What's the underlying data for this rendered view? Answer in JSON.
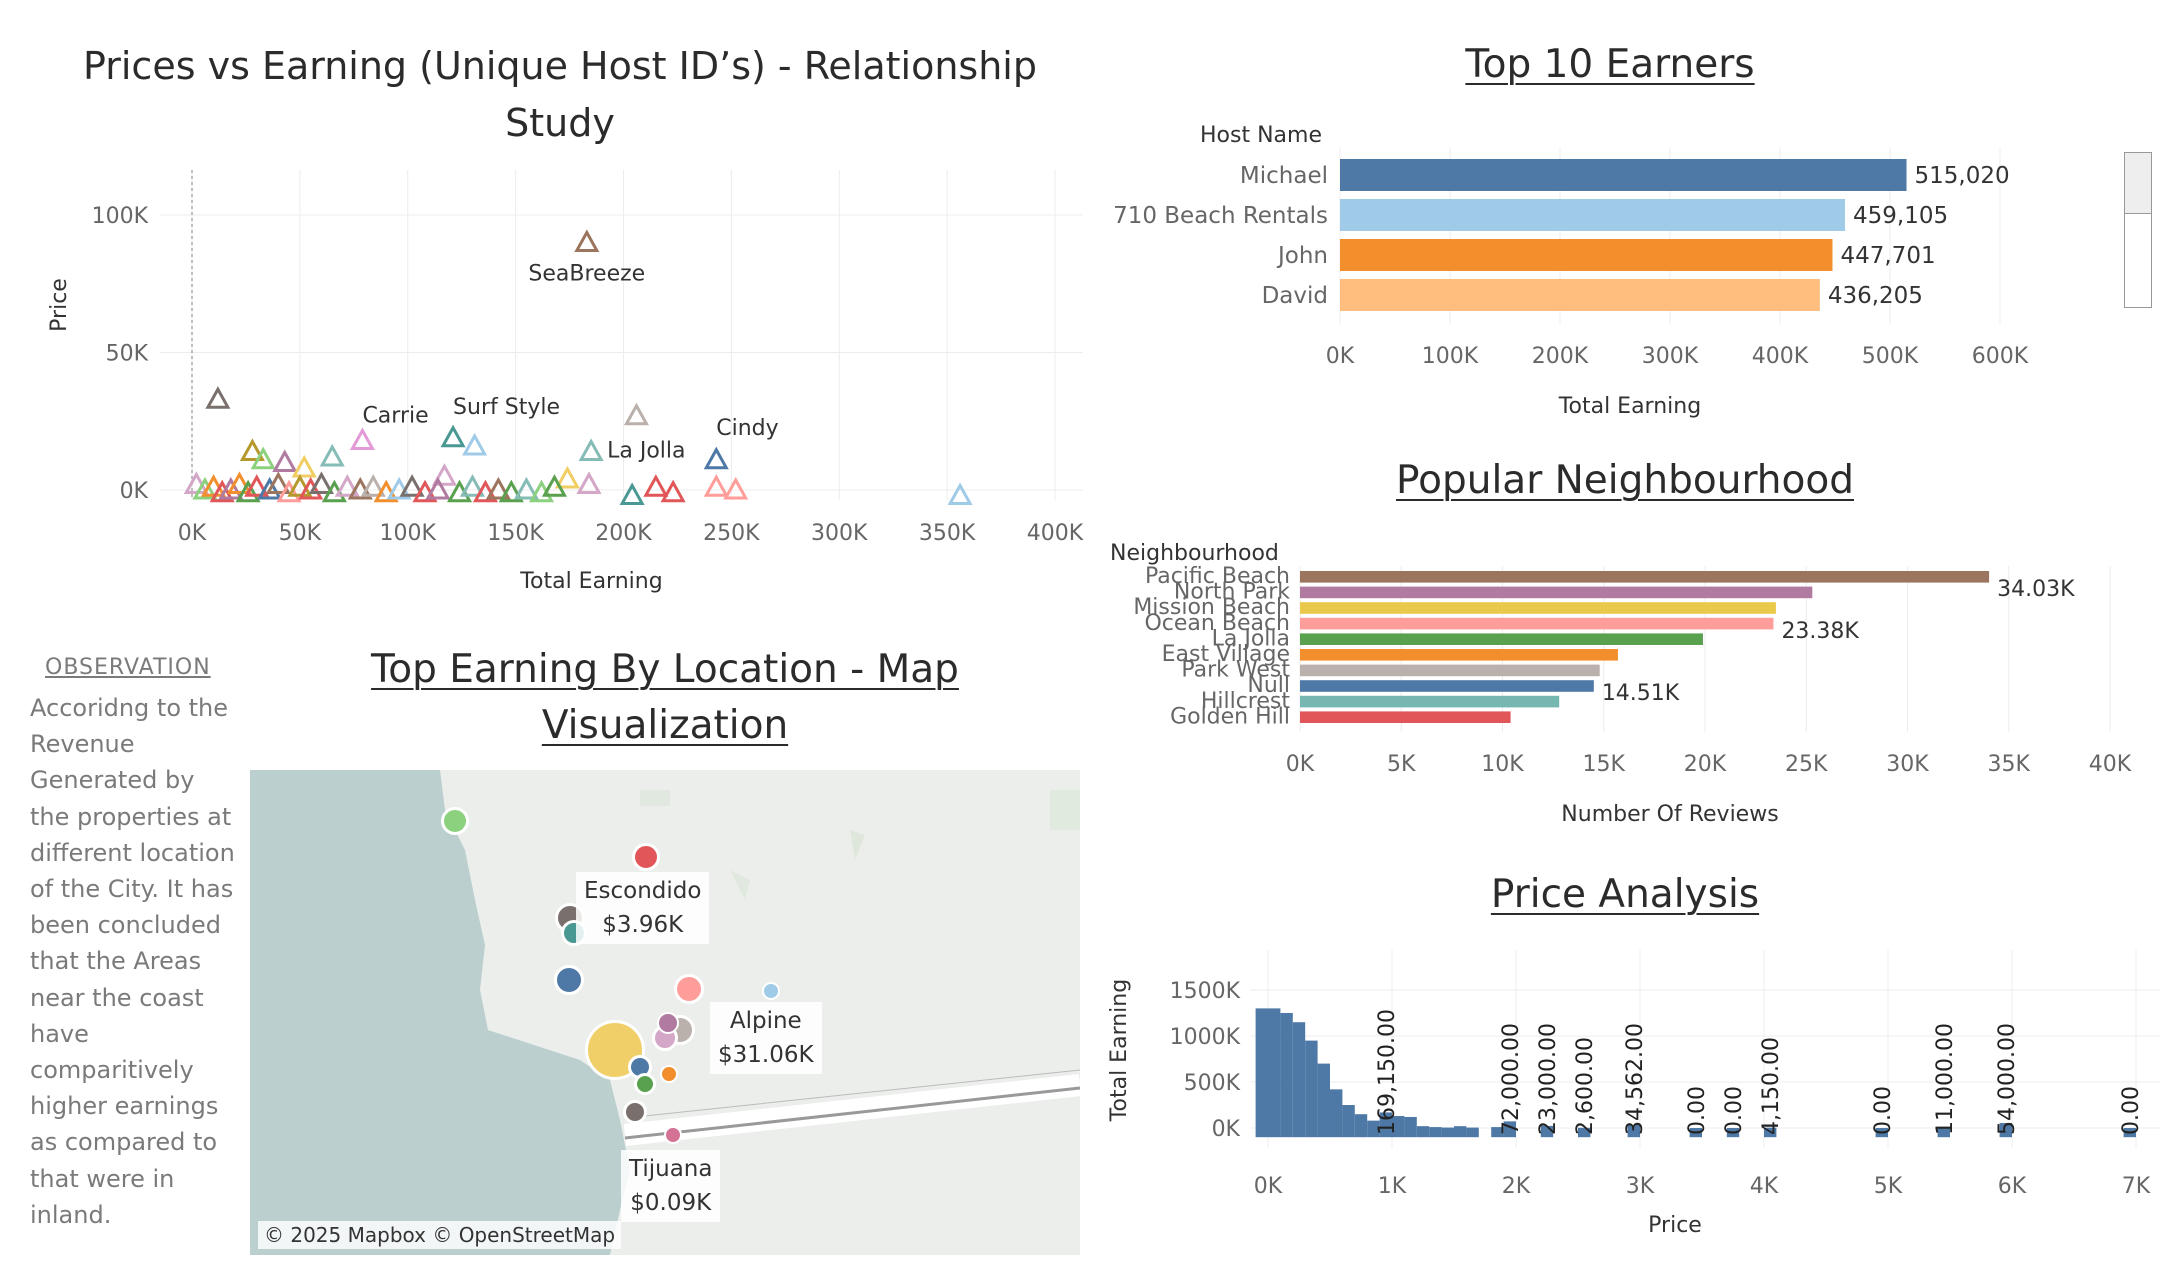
{
  "scatter": {
    "title": "Prices vs Earning (Unique Host ID’s) - Relationship Study",
    "xlabel": "Total Earning",
    "ylabel": "Price"
  },
  "top10": {
    "title": "Top 10 Earners",
    "header": "Host Name",
    "xlabel": "Total Earning"
  },
  "neigh": {
    "title": "Popular Neighbourhood",
    "header": "Neighbourhood",
    "xlabel": "Number Of Reviews"
  },
  "price": {
    "title": "Price Analysis",
    "xlabel": "Price",
    "ylabel": "Total Earning"
  },
  "map": {
    "title": "Top Earning By Location - Map Visualization",
    "attribution": "© 2025 Mapbox © OpenStreetMap",
    "labels": [
      {
        "name": "Escondido",
        "value": "$3.96K"
      },
      {
        "name": "Alpine",
        "value": "$31.06K"
      },
      {
        "name": "Tijuana",
        "value": "$0.09K"
      }
    ]
  },
  "observation": {
    "heading": "OBSERVATION",
    "text": "Accoridng to the Revenue Generated by the properties at different location of the City. It has been concluded that the Areas near the coast have comparitively higher earnings as compared to that were in inland."
  },
  "chart_data": [
    {
      "type": "scatter",
      "title": "Prices vs Earning (Unique Host ID’s) - Relationship Study",
      "xlabel": "Total Earning",
      "ylabel": "Price",
      "xlim": [
        0,
        400000
      ],
      "ylim": [
        0,
        120000
      ],
      "x_ticks": [
        "0K",
        "50K",
        "100K",
        "150K",
        "200K",
        "250K",
        "300K",
        "350K",
        "400K"
      ],
      "y_ticks": [
        "0K",
        "50K",
        "100K"
      ],
      "marker": "triangle",
      "labeled_points": [
        {
          "label": "SeaBreeze",
          "x": 183000,
          "y": 90000,
          "color": "#9c755f"
        },
        {
          "label": "Carrie",
          "x": 79000,
          "y": 18000,
          "color": "#e39ad6"
        },
        {
          "label": "Surf Style",
          "x": 121000,
          "y": 19000,
          "color": "#499894"
        },
        {
          "label": "La Jolla",
          "x": 185000,
          "y": 14000,
          "color": "#86bcb6"
        },
        {
          "label": "Cindy",
          "x": 243000,
          "y": 11000,
          "color": "#4e79a7"
        }
      ],
      "points": [
        {
          "x": 12000,
          "y": 33000,
          "color": "#79706e"
        },
        {
          "x": 131000,
          "y": 16000,
          "color": "#a0cbe8"
        },
        {
          "x": 206000,
          "y": 27000,
          "color": "#bab0ac"
        },
        {
          "x": 65000,
          "y": 12000,
          "color": "#86bcb6"
        },
        {
          "x": 28000,
          "y": 14000,
          "color": "#b6992d"
        },
        {
          "x": 33000,
          "y": 11000,
          "color": "#8cd17d"
        },
        {
          "x": 43000,
          "y": 10000,
          "color": "#b07aa1"
        },
        {
          "x": 52000,
          "y": 8000,
          "color": "#f1ce63"
        },
        {
          "x": 117000,
          "y": 5000,
          "color": "#d4a6c8"
        },
        {
          "x": 174000,
          "y": 4000,
          "color": "#f1ce63"
        },
        {
          "x": 184000,
          "y": 2000,
          "color": "#d4a6c8"
        },
        {
          "x": 215000,
          "y": 1000,
          "color": "#e15759"
        },
        {
          "x": 243000,
          "y": 1000,
          "color": "#ff9d9a"
        },
        {
          "x": 252000,
          "y": 0,
          "color": "#ff9d9a"
        },
        {
          "x": 356000,
          "y": -2000,
          "color": "#a0cbe8"
        },
        {
          "x": 204000,
          "y": -2000,
          "color": "#499894"
        },
        {
          "x": 223000,
          "y": -1000,
          "color": "#e15759"
        },
        {
          "x": 2000,
          "y": 2000,
          "color": "#d4a6c8"
        },
        {
          "x": 6000,
          "y": 0,
          "color": "#8cd17d"
        },
        {
          "x": 10000,
          "y": 1000,
          "color": "#f28e2b"
        },
        {
          "x": 14000,
          "y": -1000,
          "color": "#e15759"
        },
        {
          "x": 18000,
          "y": 0,
          "color": "#b07aa1"
        },
        {
          "x": 22000,
          "y": 2000,
          "color": "#f28e2b"
        },
        {
          "x": 26000,
          "y": -1000,
          "color": "#59a14f"
        },
        {
          "x": 30000,
          "y": 1000,
          "color": "#e15759"
        },
        {
          "x": 36000,
          "y": 0,
          "color": "#4e79a7"
        },
        {
          "x": 40000,
          "y": 2000,
          "color": "#9c755f"
        },
        {
          "x": 45000,
          "y": -1000,
          "color": "#ff9d9a"
        },
        {
          "x": 50000,
          "y": 1000,
          "color": "#b6992d"
        },
        {
          "x": 55000,
          "y": 0,
          "color": "#e15759"
        },
        {
          "x": 60000,
          "y": 2000,
          "color": "#79706e"
        },
        {
          "x": 66000,
          "y": -1000,
          "color": "#59a14f"
        },
        {
          "x": 72000,
          "y": 1000,
          "color": "#d4a6c8"
        },
        {
          "x": 78000,
          "y": 0,
          "color": "#9c755f"
        },
        {
          "x": 84000,
          "y": 1000,
          "color": "#bab0ac"
        },
        {
          "x": 90000,
          "y": -1000,
          "color": "#f28e2b"
        },
        {
          "x": 96000,
          "y": 0,
          "color": "#a0cbe8"
        },
        {
          "x": 102000,
          "y": 1000,
          "color": "#79706e"
        },
        {
          "x": 108000,
          "y": -1000,
          "color": "#e15759"
        },
        {
          "x": 114000,
          "y": 0,
          "color": "#b07aa1"
        },
        {
          "x": 124000,
          "y": -1000,
          "color": "#59a14f"
        },
        {
          "x": 130000,
          "y": 1000,
          "color": "#86bcb6"
        },
        {
          "x": 136000,
          "y": -1000,
          "color": "#e15759"
        },
        {
          "x": 142000,
          "y": 0,
          "color": "#9c755f"
        },
        {
          "x": 148000,
          "y": -1000,
          "color": "#59a14f"
        },
        {
          "x": 155000,
          "y": 0,
          "color": "#86bcb6"
        },
        {
          "x": 162000,
          "y": -1000,
          "color": "#8cd17d"
        },
        {
          "x": 168000,
          "y": 1000,
          "color": "#59a14f"
        }
      ]
    },
    {
      "type": "bar",
      "orientation": "horizontal",
      "title": "Top 10 Earners",
      "xlabel": "Total Earning",
      "xlim": [
        0,
        600000
      ],
      "x_ticks": [
        "0K",
        "100K",
        "200K",
        "300K",
        "400K",
        "500K",
        "600K"
      ],
      "categories": [
        "Michael",
        "710 Beach Rentals",
        "John",
        "David"
      ],
      "values": [
        515020,
        459105,
        447701,
        436205
      ],
      "value_labels": [
        "515,020",
        "459,105",
        "447,701",
        "436,205"
      ],
      "colors": [
        "#4e79a7",
        "#a0cbe8",
        "#f28e2b",
        "#ffbe7d"
      ]
    },
    {
      "type": "bar",
      "orientation": "horizontal",
      "title": "Popular Neighbourhood",
      "xlabel": "Number Of Reviews",
      "xlim": [
        0,
        40000
      ],
      "x_ticks": [
        "0K",
        "5K",
        "10K",
        "15K",
        "20K",
        "25K",
        "30K",
        "35K",
        "40K"
      ],
      "categories": [
        "Pacific Beach",
        "North Park",
        "Mission Beach",
        "Ocean Beach",
        "La Jolla",
        "East Village",
        "Park West",
        "Null",
        "Hillcrest",
        "Golden Hill"
      ],
      "values": [
        34030,
        25300,
        23500,
        23380,
        19900,
        15700,
        14800,
        14510,
        12800,
        10400
      ],
      "value_labels": [
        "34.03K",
        "",
        "",
        "23.38K",
        "",
        "",
        "",
        "14.51K",
        "",
        ""
      ],
      "colors": [
        "#9c755f",
        "#b07aa1",
        "#e9c84a",
        "#ff9d9a",
        "#59a14f",
        "#f28e2b",
        "#bab0ac",
        "#4e79a7",
        "#76b7b2",
        "#e15759"
      ]
    },
    {
      "type": "bar",
      "title": "Price Analysis",
      "xlabel": "Price",
      "ylabel": "Total Earning",
      "xlim": [
        -100,
        7000
      ],
      "ylim": [
        -100000,
        1600000
      ],
      "x_ticks": [
        "0K",
        "1K",
        "2K",
        "3K",
        "4K",
        "5K",
        "6K",
        "7K"
      ],
      "y_ticks": [
        "0K",
        "500K",
        "1000K",
        "1500K"
      ],
      "bin_width": 100,
      "bins": [
        {
          "x": -100,
          "y": 1300000
        },
        {
          "x": 0,
          "y": 1300000
        },
        {
          "x": 100,
          "y": 1250000
        },
        {
          "x": 200,
          "y": 1150000
        },
        {
          "x": 300,
          "y": 950000
        },
        {
          "x": 400,
          "y": 700000
        },
        {
          "x": 500,
          "y": 420000
        },
        {
          "x": 600,
          "y": 250000
        },
        {
          "x": 700,
          "y": 150000
        },
        {
          "x": 800,
          "y": 80000
        },
        {
          "x": 900,
          "y": 169150
        },
        {
          "x": 1000,
          "y": 130000
        },
        {
          "x": 1100,
          "y": 120000
        },
        {
          "x": 1200,
          "y": 20000
        },
        {
          "x": 1300,
          "y": 10000
        },
        {
          "x": 1400,
          "y": 5000
        },
        {
          "x": 1500,
          "y": 20000
        },
        {
          "x": 1600,
          "y": 5000
        },
        {
          "x": 1800,
          "y": 10000
        },
        {
          "x": 1900,
          "y": 72000
        },
        {
          "x": 2200,
          "y": 23000
        },
        {
          "x": 2500,
          "y": 2600
        },
        {
          "x": 2900,
          "y": 34562
        },
        {
          "x": 3400,
          "y": 0
        },
        {
          "x": 3700,
          "y": 0
        },
        {
          "x": 4000,
          "y": 4150
        },
        {
          "x": 4900,
          "y": 0
        },
        {
          "x": 5400,
          "y": 11000
        },
        {
          "x": 5900,
          "y": 54000
        },
        {
          "x": 6900,
          "y": 0
        }
      ],
      "data_labels": [
        {
          "x": 900,
          "text": "169,150.00"
        },
        {
          "x": 1900,
          "text": "72,000.00"
        },
        {
          "x": 2200,
          "text": "23,000.00"
        },
        {
          "x": 2500,
          "text": "2,600.00"
        },
        {
          "x": 2900,
          "text": "34,562.00"
        },
        {
          "x": 3400,
          "text": "0.00"
        },
        {
          "x": 3700,
          "text": "0.00"
        },
        {
          "x": 4000,
          "text": "4,150.00"
        },
        {
          "x": 4900,
          "text": "0.00"
        },
        {
          "x": 5400,
          "text": "11,000.00"
        },
        {
          "x": 5900,
          "text": "54,000.00"
        },
        {
          "x": 6900,
          "text": "0.00"
        }
      ]
    }
  ]
}
